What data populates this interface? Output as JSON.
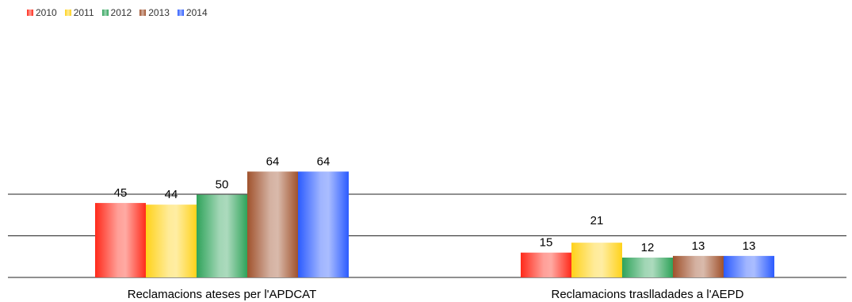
{
  "chart_data": {
    "type": "bar",
    "categories": [
      "Reclamacions ateses per l'APDCAT",
      "Reclamacions traslladades a l'AEPD"
    ],
    "series": [
      {
        "name": "2010",
        "values": [
          45,
          15
        ],
        "color": "#ff2a1a"
      },
      {
        "name": "2011",
        "values": [
          44,
          21
        ],
        "color": "#ffd21a"
      },
      {
        "name": "2012",
        "values": [
          50,
          12
        ],
        "color": "#2fa35a"
      },
      {
        "name": "2013",
        "values": [
          64,
          13
        ],
        "color": "#a0522d"
      },
      {
        "name": "2014",
        "values": [
          64,
          13
        ],
        "color": "#2b5bff"
      }
    ],
    "ylim": [
      0,
      70
    ],
    "grid": true,
    "legend_position": "top-left",
    "data_labels": true
  }
}
